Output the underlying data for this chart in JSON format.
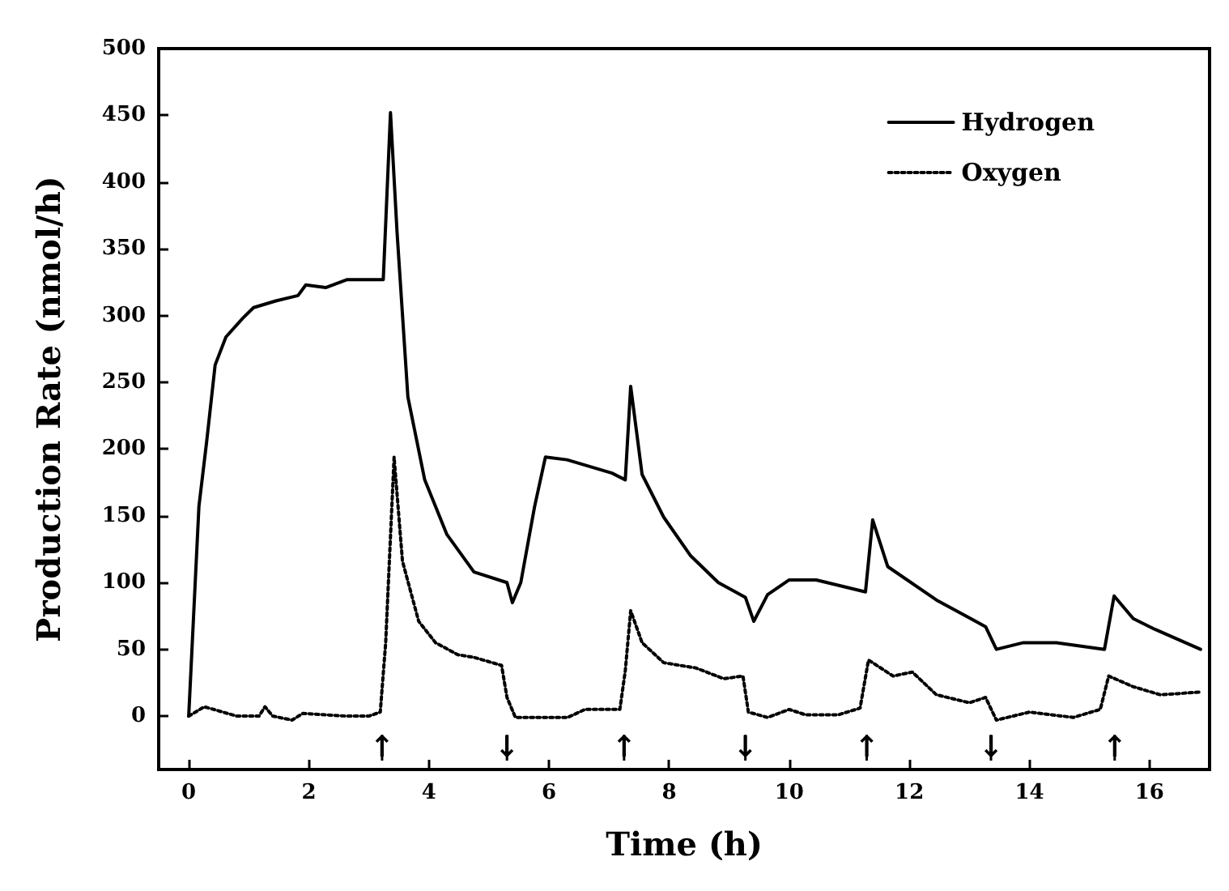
{
  "chart_data": {
    "type": "line",
    "xlabel": "Time (h)",
    "ylabel": "Production Rate (nmol/h)",
    "xlim": [
      -0.5,
      17
    ],
    "xticks": [
      0,
      2,
      4,
      6,
      8,
      10,
      12,
      14,
      16
    ],
    "ylim": [
      -40,
      500
    ],
    "yticks": [
      0,
      50,
      100,
      150,
      200,
      250,
      300,
      350,
      400,
      450,
      500
    ],
    "grid": false,
    "legend": "top right",
    "marker": "none",
    "series": [
      {
        "name": "Hydrogen",
        "color": "#000000",
        "line_style": "solid",
        "x": [
          0,
          0.17,
          0.3,
          0.44,
          0.62,
          0.9,
          1.08,
          1.45,
          1.82,
          1.95,
          2.28,
          2.64,
          3.24,
          3.36,
          3.47,
          3.65,
          3.93,
          4.3,
          4.75,
          5.3,
          5.39,
          5.53,
          5.76,
          5.94,
          6.3,
          7.05,
          7.27,
          7.36,
          7.55,
          7.91,
          8.36,
          8.82,
          9.27,
          9.41,
          9.64,
          10,
          10.45,
          11.27,
          11.39,
          11.64,
          12.45,
          13.27,
          13.45,
          13.9,
          14.45,
          15.25,
          15.41,
          15.73,
          16.09,
          16.85
        ],
        "values": [
          0,
          157,
          206,
          263,
          284,
          298,
          306,
          311,
          315,
          323,
          321,
          327,
          327,
          452,
          362,
          239,
          177,
          136,
          108,
          100,
          85,
          100,
          157,
          194,
          192,
          182,
          177,
          247,
          181,
          149,
          120,
          100,
          89,
          71,
          91,
          102,
          102,
          93,
          147,
          112,
          87,
          67,
          50,
          55,
          55,
          50,
          90,
          73,
          65,
          50
        ]
      },
      {
        "name": "Oxygen",
        "color": "#000000",
        "line_style": "dotted",
        "x": [
          0,
          0.26,
          0.8,
          1.17,
          1.27,
          1.4,
          1.72,
          1.9,
          2.64,
          3.0,
          3.19,
          3.28,
          3.42,
          3.56,
          3.83,
          4.11,
          4.48,
          4.75,
          5.21,
          5.3,
          5.44,
          5.85,
          6.31,
          6.6,
          7.0,
          7.18,
          7.27,
          7.36,
          7.55,
          7.91,
          8.45,
          8.91,
          9.23,
          9.32,
          9.64,
          10,
          10.27,
          10.82,
          11.18,
          11.32,
          11.73,
          12.05,
          12.45,
          13.0,
          13.27,
          13.45,
          14.0,
          14.73,
          15.18,
          15.32,
          15.73,
          16.18,
          16.85
        ],
        "values": [
          0,
          7,
          0,
          0,
          7,
          0,
          -3,
          2,
          0,
          0,
          3,
          55,
          194,
          116,
          71,
          55,
          46,
          44,
          38,
          14,
          -1,
          -1,
          -1,
          5,
          5,
          5,
          34,
          79,
          55,
          40,
          36,
          28,
          30,
          3,
          -1,
          5,
          1,
          1,
          6,
          42,
          30,
          33,
          16,
          10,
          14,
          -3,
          3,
          -1,
          5,
          30,
          22,
          16,
          18
        ]
      }
    ],
    "ref_lines": [
      {
        "axis": "x",
        "value": 3.22,
        "label": "↑"
      },
      {
        "axis": "x",
        "value": 5.3,
        "label": "↓"
      },
      {
        "axis": "x",
        "value": 7.25,
        "label": "↑"
      },
      {
        "axis": "x",
        "value": 9.27,
        "label": "↓"
      },
      {
        "axis": "x",
        "value": 11.29,
        "label": "↑"
      },
      {
        "axis": "x",
        "value": 13.36,
        "label": "↓"
      },
      {
        "axis": "x",
        "value": 15.42,
        "label": "↑"
      }
    ]
  }
}
